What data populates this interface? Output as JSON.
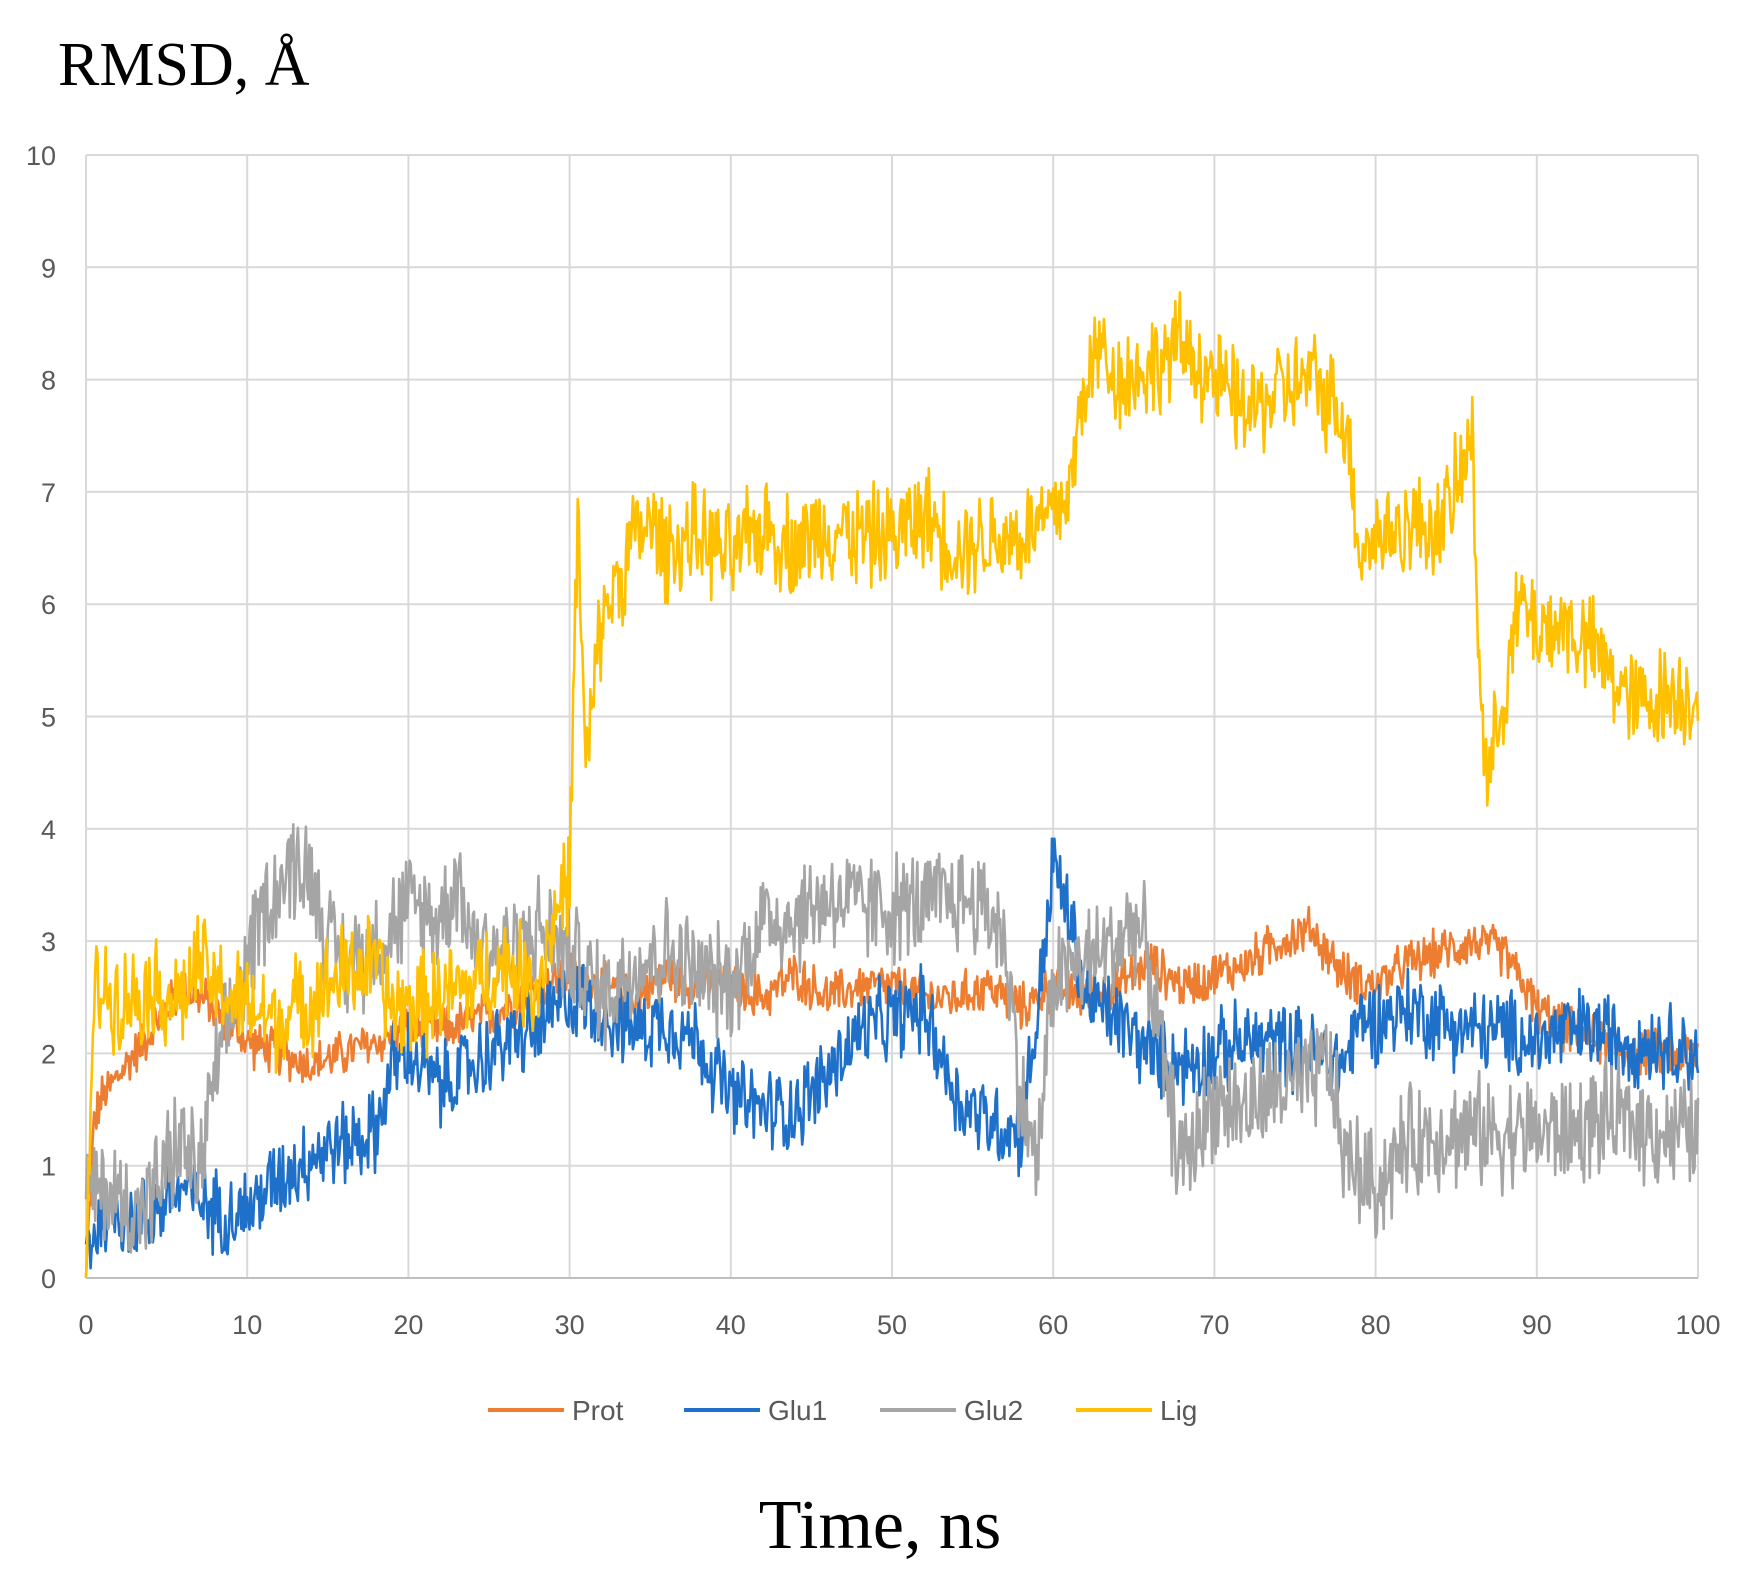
{
  "chart_data": {
    "type": "line",
    "title": "",
    "ylabel": "RMSD, Å",
    "xlabel": "Time, ns",
    "xlim": [
      0,
      100
    ],
    "ylim": [
      0,
      10
    ],
    "xticks": [
      0,
      10,
      20,
      30,
      40,
      50,
      60,
      70,
      80,
      90,
      100
    ],
    "yticks": [
      0,
      1,
      2,
      3,
      4,
      5,
      6,
      7,
      8,
      9,
      10
    ],
    "grid": true,
    "legend_position": "bottom",
    "series": [
      {
        "name": "Prot",
        "color": "#ED7D31",
        "x": [
          0,
          0.5,
          1,
          2,
          3,
          4,
          5,
          6,
          7,
          8,
          10,
          12,
          14,
          16,
          18,
          20,
          22,
          24,
          26,
          28,
          30,
          32,
          34,
          36,
          38,
          40,
          42,
          44,
          46,
          48,
          50,
          52,
          54,
          56,
          58,
          60,
          62,
          64,
          66,
          68,
          70,
          72,
          74,
          76,
          78,
          80,
          82,
          84,
          86,
          88,
          90,
          92,
          94,
          96,
          98,
          100
        ],
        "y": [
          0.0,
          1.4,
          1.6,
          1.8,
          2.0,
          2.2,
          2.4,
          2.6,
          2.5,
          2.4,
          2.1,
          2.0,
          1.9,
          2.0,
          2.1,
          2.2,
          2.2,
          2.3,
          2.4,
          2.6,
          2.7,
          2.6,
          2.5,
          2.7,
          2.6,
          2.6,
          2.5,
          2.7,
          2.5,
          2.6,
          2.6,
          2.5,
          2.5,
          2.6,
          2.4,
          2.6,
          2.5,
          2.6,
          2.8,
          2.6,
          2.7,
          2.8,
          3.0,
          3.1,
          2.7,
          2.6,
          2.8,
          2.9,
          3.0,
          2.9,
          2.4,
          2.2,
          2.1,
          2.0,
          2.0,
          2.0
        ]
      },
      {
        "name": "Glu1",
        "color": "#1F70C8",
        "x": [
          0,
          1,
          2,
          3,
          4,
          5,
          6,
          7,
          8,
          9,
          10,
          12,
          14,
          16,
          18,
          19,
          20,
          22,
          24,
          26,
          28,
          30,
          32,
          34,
          36,
          38,
          40,
          42,
          44,
          46,
          48,
          50,
          52,
          54,
          56,
          58,
          59,
          60,
          61,
          62,
          64,
          66,
          68,
          70,
          72,
          74,
          76,
          78,
          79,
          80,
          82,
          84,
          86,
          88,
          90,
          92,
          94,
          96,
          98,
          100
        ],
        "y": [
          0.3,
          0.5,
          0.6,
          0.5,
          0.6,
          0.7,
          0.8,
          0.7,
          0.6,
          0.6,
          0.6,
          0.9,
          1.1,
          1.2,
          1.3,
          1.9,
          2.0,
          1.7,
          1.9,
          2.1,
          2.2,
          2.5,
          2.4,
          2.2,
          2.3,
          2.1,
          1.6,
          1.5,
          1.5,
          1.8,
          2.2,
          2.3,
          2.4,
          1.6,
          1.4,
          1.3,
          2.3,
          3.7,
          3.2,
          2.5,
          2.3,
          2.0,
          1.9,
          2.0,
          2.1,
          2.1,
          2.0,
          1.9,
          2.3,
          2.3,
          2.4,
          2.3,
          2.2,
          2.2,
          2.1,
          2.2,
          2.2,
          2.1,
          2.1,
          2.0
        ]
      },
      {
        "name": "Glu2",
        "color": "#A5A5A5",
        "x": [
          0,
          1,
          2,
          3,
          4,
          5,
          6,
          7,
          8,
          9,
          10,
          11,
          12,
          13,
          14,
          15,
          16,
          18,
          20,
          22,
          23,
          24,
          26,
          28,
          30,
          32,
          34,
          36,
          38,
          40,
          42,
          44,
          46,
          48,
          50,
          52,
          54,
          56,
          57,
          58,
          59,
          60,
          62,
          64,
          65,
          66,
          67,
          68,
          70,
          72,
          74,
          76,
          77,
          78,
          80,
          82,
          84,
          86,
          88,
          90,
          92,
          94,
          96,
          98,
          100
        ],
        "y": [
          0.7,
          0.8,
          0.7,
          0.6,
          0.7,
          1.0,
          1.2,
          0.9,
          1.8,
          2.3,
          2.8,
          3.3,
          3.5,
          3.7,
          3.6,
          3.0,
          2.8,
          3.0,
          3.3,
          3.2,
          3.6,
          3.0,
          2.9,
          3.1,
          2.9,
          2.5,
          2.8,
          2.9,
          2.7,
          2.6,
          3.2,
          3.2,
          3.4,
          3.3,
          3.3,
          3.3,
          3.4,
          3.3,
          3.0,
          1.6,
          1.0,
          2.7,
          2.8,
          3.0,
          3.2,
          2.8,
          1.7,
          1.0,
          1.6,
          1.5,
          1.7,
          1.7,
          2.0,
          1.1,
          0.8,
          1.2,
          1.3,
          1.3,
          1.3,
          1.3,
          1.3,
          1.4,
          1.4,
          1.3,
          1.3
        ]
      },
      {
        "name": "Lig",
        "color": "#FFC000",
        "x": [
          0,
          0.5,
          1,
          2,
          3,
          4,
          5,
          6,
          7,
          8,
          9,
          10,
          12,
          14,
          16,
          18,
          19,
          20,
          22,
          24,
          26,
          28,
          29,
          30,
          30.5,
          31,
          32,
          33,
          34,
          35,
          36,
          38,
          40,
          42,
          44,
          46,
          48,
          50,
          52,
          54,
          56,
          58,
          60,
          61,
          62,
          63,
          64,
          66,
          68,
          70,
          72,
          74,
          76,
          78,
          78.5,
          79,
          80,
          82,
          84,
          85,
          86,
          86.5,
          87,
          88,
          89,
          90,
          92,
          94,
          96,
          98,
          100
        ],
        "y": [
          0.0,
          2.5,
          2.6,
          2.5,
          2.5,
          2.6,
          2.5,
          2.5,
          2.8,
          2.6,
          2.5,
          2.4,
          2.3,
          2.5,
          2.7,
          2.8,
          2.4,
          2.4,
          2.5,
          2.6,
          2.8,
          2.6,
          3.2,
          3.6,
          6.8,
          4.5,
          5.9,
          6.2,
          6.6,
          6.7,
          6.5,
          6.6,
          6.4,
          6.7,
          6.5,
          6.7,
          6.6,
          6.6,
          6.8,
          6.5,
          6.6,
          6.6,
          6.8,
          7.0,
          8.0,
          8.3,
          8.0,
          8.1,
          8.3,
          8.0,
          7.7,
          7.9,
          8.0,
          7.7,
          7.2,
          6.5,
          6.6,
          6.7,
          6.7,
          7.0,
          7.5,
          5.2,
          4.4,
          5.3,
          6.0,
          5.8,
          5.8,
          5.5,
          5.1,
          5.2,
          5.2
        ]
      }
    ]
  }
}
